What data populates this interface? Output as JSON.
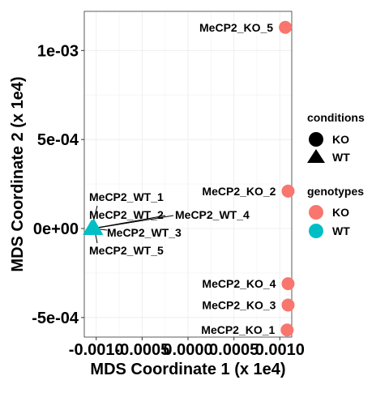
{
  "chart_data": {
    "type": "scatter",
    "xlabel": "MDS Coordinate 1 (x 1e4)",
    "ylabel": "MDS Coordinate 2 (x 1e4)",
    "xlim": [
      -0.00113,
      0.00113
    ],
    "ylim": [
      -0.00061,
      0.00122
    ],
    "x_ticks": [
      -0.001,
      -0.0005,
      0.0,
      0.0005,
      0.001
    ],
    "x_tick_labels": [
      "-0.0010",
      "-0.0005",
      "0.0000",
      "0.0005",
      "0.0010"
    ],
    "y_ticks": [
      -0.0005,
      0.0,
      0.0005,
      0.001
    ],
    "y_tick_labels": [
      "-5e-04",
      "0e+00",
      "5e-04",
      "1e-03"
    ],
    "grid": true,
    "legend_position": "right",
    "colors": {
      "KO": "#F8766D",
      "WT": "#00BFC4"
    },
    "points": [
      {
        "label": "MeCP2_KO_5",
        "x": 0.00106,
        "y": 0.00113,
        "condition": "KO",
        "genotype": "KO"
      },
      {
        "label": "MeCP2_KO_2",
        "x": 0.00109,
        "y": 0.00021,
        "condition": "KO",
        "genotype": "KO"
      },
      {
        "label": "MeCP2_KO_4",
        "x": 0.00109,
        "y": -0.00031,
        "condition": "KO",
        "genotype": "KO"
      },
      {
        "label": "MeCP2_KO_3",
        "x": 0.00109,
        "y": -0.00043,
        "condition": "KO",
        "genotype": "KO"
      },
      {
        "label": "MeCP2_KO_1",
        "x": 0.00108,
        "y": -0.00057,
        "condition": "KO",
        "genotype": "KO"
      },
      {
        "label": "MeCP2_WT_1",
        "x": -0.00105,
        "y": 0.0,
        "condition": "WT",
        "genotype": "WT"
      },
      {
        "label": "MeCP2_WT_2",
        "x": -0.00104,
        "y": 0.0,
        "condition": "WT",
        "genotype": "WT"
      },
      {
        "label": "MeCP2_WT_3",
        "x": -0.00103,
        "y": 0.0,
        "condition": "WT",
        "genotype": "WT"
      },
      {
        "label": "MeCP2_WT_4",
        "x": -0.00103,
        "y": 0.0,
        "condition": "WT",
        "genotype": "WT"
      },
      {
        "label": "MeCP2_WT_5",
        "x": -0.00102,
        "y": 0.0,
        "condition": "WT",
        "genotype": "WT"
      }
    ],
    "legends": [
      {
        "title": "conditions",
        "items": [
          {
            "label": "KO",
            "shape": "circle"
          },
          {
            "label": "WT",
            "shape": "triangle"
          }
        ]
      },
      {
        "title": "genotypes",
        "items": [
          {
            "label": "KO",
            "color": "#F8766D"
          },
          {
            "label": "WT",
            "color": "#00BFC4"
          }
        ]
      }
    ]
  }
}
